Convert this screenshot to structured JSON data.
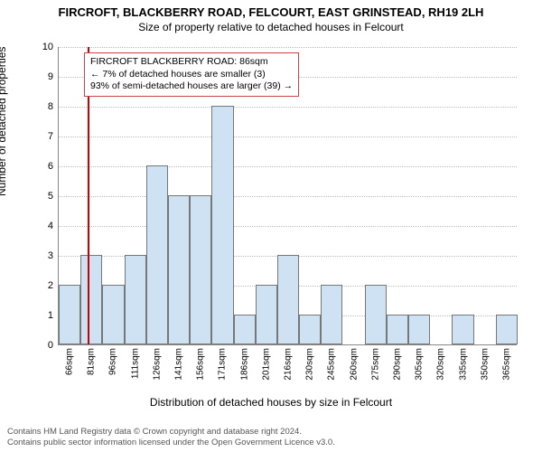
{
  "title": "FIRCROFT, BLACKBERRY ROAD, FELCOURT, EAST GRINSTEAD, RH19 2LH",
  "subtitle": "Size of property relative to detached houses in Felcourt",
  "y_axis_label": "Number of detached properties",
  "x_axis_label": "Distribution of detached houses by size in Felcourt",
  "chart": {
    "type": "histogram",
    "ylim": [
      0,
      10
    ],
    "ytick_step": 1,
    "background_color": "#ffffff",
    "grid_color": "#bbbbbb",
    "bar_fill": "#cfe2f3",
    "bar_fill_left_of_marker": "#cfe2f3",
    "bar_border": "#777777",
    "label_fontsize": 12,
    "tick_fontsize": 10,
    "x_categories": [
      "66sqm",
      "81sqm",
      "96sqm",
      "111sqm",
      "126sqm",
      "141sqm",
      "156sqm",
      "171sqm",
      "186sqm",
      "201sqm",
      "216sqm",
      "230sqm",
      "245sqm",
      "260sqm",
      "275sqm",
      "290sqm",
      "305sqm",
      "320sqm",
      "335sqm",
      "350sqm",
      "365sqm"
    ],
    "values": [
      2,
      3,
      2,
      3,
      6,
      5,
      5,
      8,
      1,
      2,
      3,
      1,
      2,
      0,
      2,
      1,
      1,
      0,
      1,
      0,
      1
    ],
    "marker": {
      "position_sqm": 86,
      "color": "#cc0000",
      "annotation_lines": [
        "FIRCROFT BLACKBERRY ROAD: 86sqm",
        "← 7% of detached houses are smaller (3)",
        "93% of semi-detached houses are larger (39) →"
      ],
      "annotation_border": "#cc4444"
    }
  },
  "footer_lines": [
    "Contains HM Land Registry data © Crown copyright and database right 2024.",
    "Contains public sector information licensed under the Open Government Licence v3.0."
  ]
}
